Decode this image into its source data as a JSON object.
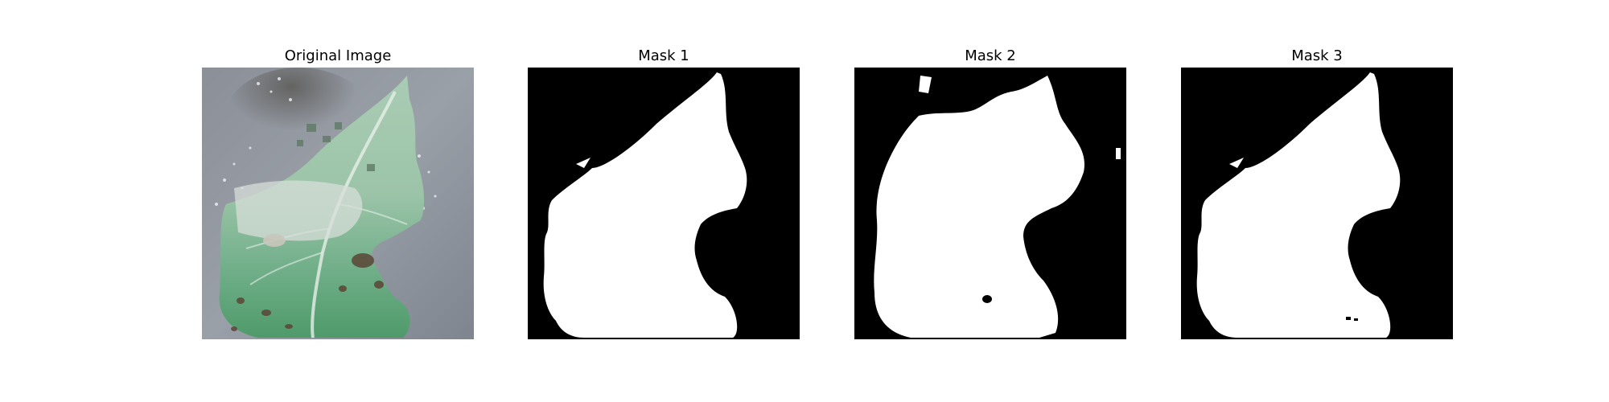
{
  "figure": {
    "panels": [
      {
        "title": "Original Image",
        "kind": "photo"
      },
      {
        "title": "Mask 1",
        "kind": "mask"
      },
      {
        "title": "Mask 2",
        "kind": "mask"
      },
      {
        "title": "Mask 3",
        "kind": "mask"
      }
    ],
    "colors": {
      "background": "#ffffff",
      "mask_background": "#000000",
      "mask_foreground": "#ffffff",
      "photo_background": "#8d939b",
      "leaf_green": "#6fae88",
      "leaf_light": "#c9ddcf",
      "lesion_brown": "#5a4636"
    }
  }
}
